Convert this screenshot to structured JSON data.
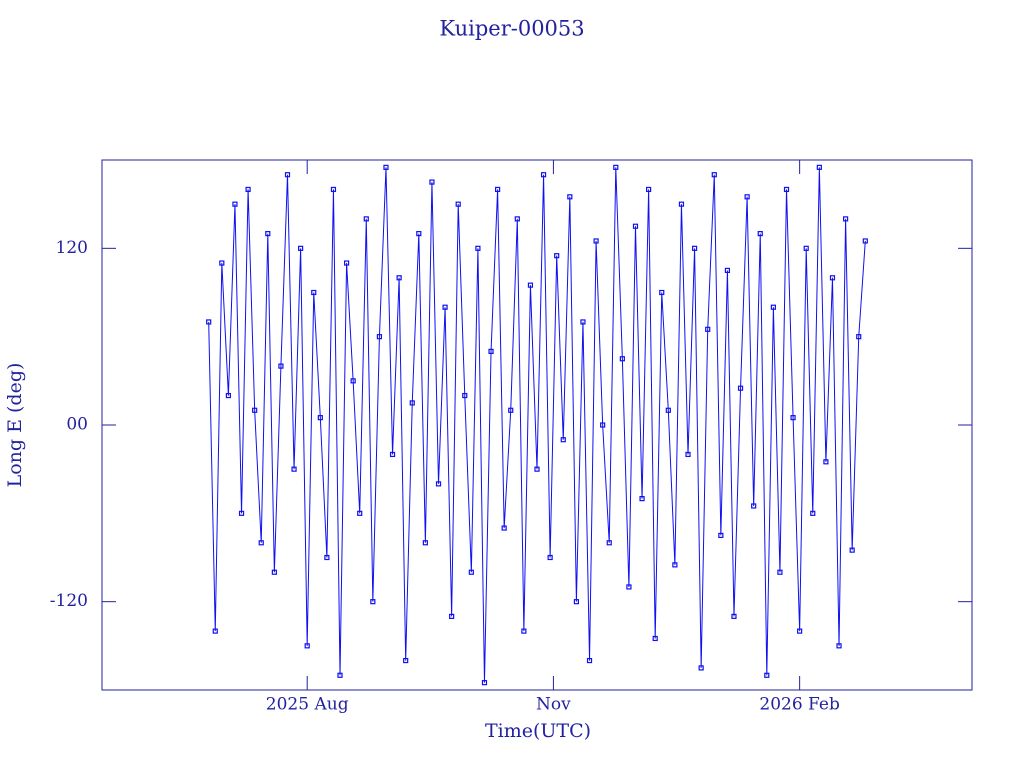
{
  "chart_data": {
    "type": "line",
    "title": "Kuiper-00053",
    "x_label": "Time(UTC)",
    "y_label": "Long E (deg)",
    "color": "#1010f0",
    "axis_color": "#2222a0",
    "marker": "square",
    "xlim": [
      4.5,
      15.1
    ],
    "xticks": [
      {
        "value": 7,
        "label": "2025 Aug"
      },
      {
        "value": 10,
        "label": "Nov"
      },
      {
        "value": 13,
        "label": "2026 Feb"
      }
    ],
    "ylim": [
      -180,
      180
    ],
    "yticks": [
      -120,
      {
        "value": 0,
        "label": "00"
      },
      120
    ],
    "x": [
      5.8,
      5.88,
      5.96,
      6.04,
      6.12,
      6.2,
      6.28,
      6.36,
      6.44,
      6.52,
      6.6,
      6.68,
      6.76,
      6.84,
      6.92,
      7,
      7.08,
      7.16,
      7.24,
      7.32,
      7.4,
      7.48,
      7.56,
      7.64,
      7.72,
      7.8,
      7.88,
      7.96,
      8.04,
      8.12,
      8.2,
      8.28,
      8.36,
      8.44,
      8.52,
      8.6,
      8.68,
      8.76,
      8.84,
      8.92,
      9,
      9.08,
      9.16,
      9.24,
      9.32,
      9.4,
      9.48,
      9.56,
      9.64,
      9.72,
      9.8,
      9.88,
      9.96,
      10.04,
      10.12,
      10.2,
      10.28,
      10.36,
      10.44,
      10.52,
      10.6,
      10.68,
      10.76,
      10.84,
      10.92,
      11,
      11.08,
      11.16,
      11.24,
      11.32,
      11.4,
      11.48,
      11.56,
      11.64,
      11.72,
      11.8,
      11.88,
      11.96,
      12.04,
      12.12,
      12.2,
      12.28,
      12.36,
      12.44,
      12.52,
      12.6,
      12.68,
      12.76,
      12.84,
      12.92,
      13,
      13.08,
      13.16,
      13.24,
      13.32,
      13.4,
      13.48,
      13.56,
      13.64,
      13.72,
      13.8
    ],
    "values": [
      70,
      -140,
      110,
      20,
      150,
      -60,
      160,
      10,
      -80,
      130,
      -100,
      40,
      170,
      -30,
      120,
      -150,
      90,
      5,
      -90,
      160,
      -170,
      110,
      30,
      -60,
      140,
      -120,
      60,
      175,
      -20,
      100,
      -160,
      15,
      130,
      -80,
      165,
      -40,
      80,
      -130,
      150,
      20,
      -100,
      120,
      -175,
      50,
      160,
      -70,
      10,
      140,
      -140,
      95,
      -30,
      170,
      -90,
      115,
      -10,
      155,
      -120,
      70,
      -160,
      125,
      0,
      -80,
      175,
      45,
      -110,
      135,
      -50,
      160,
      -145,
      90,
      10,
      -95,
      150,
      -20,
      120,
      -165,
      65,
      170,
      -75,
      105,
      -130,
      25,
      155,
      -55,
      130,
      -170,
      80,
      -100,
      160,
      5,
      -140,
      120,
      -60,
      175,
      -25,
      100,
      -150,
      140,
      -85,
      60,
      125
    ]
  }
}
